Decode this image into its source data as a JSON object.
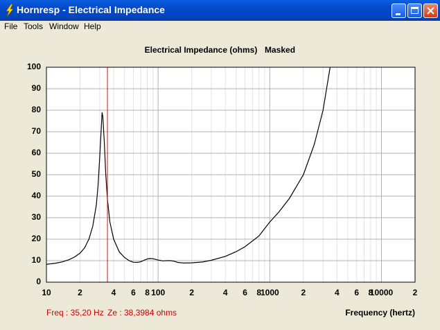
{
  "window": {
    "title": "Hornresp - Electrical Impedance"
  },
  "menu": [
    "File",
    "Tools",
    "Window",
    "Help"
  ],
  "chart_data": {
    "type": "line",
    "title": "Electrical Impedance (ohms)",
    "subtitle": "Masked",
    "x_label": "Frequency (hertz)",
    "xscale": "log",
    "xlim": [
      10,
      20000
    ],
    "xticks": [
      10,
      {
        "value": 20,
        "label": "2"
      },
      {
        "value": 40,
        "label": "4"
      },
      {
        "value": 60,
        "label": "6"
      },
      {
        "value": 80,
        "label": "8"
      },
      100,
      {
        "value": 200,
        "label": "2"
      },
      {
        "value": 400,
        "label": "4"
      },
      {
        "value": 600,
        "label": "6"
      },
      {
        "value": 800,
        "label": "8"
      },
      1000,
      {
        "value": 2000,
        "label": "2"
      },
      {
        "value": 4000,
        "label": "4"
      },
      {
        "value": 6000,
        "label": "6"
      },
      {
        "value": 8000,
        "label": "8"
      },
      10000,
      {
        "value": 20000,
        "label": "2"
      }
    ],
    "xminor": [
      30,
      50,
      70,
      90,
      300,
      500,
      700,
      900,
      3000,
      5000,
      7000,
      9000
    ],
    "ylim": [
      0,
      100
    ],
    "yticks": [
      0,
      10,
      20,
      30,
      40,
      50,
      60,
      70,
      80,
      90,
      100
    ],
    "grid": true,
    "color": "#000000",
    "x": [
      10,
      12,
      14,
      16,
      18,
      20,
      22,
      24,
      26,
      28,
      29,
      30,
      31,
      31.5,
      32,
      33,
      34,
      35.2,
      37,
      40,
      45,
      50,
      55,
      60,
      65,
      70,
      75,
      80,
      85,
      90,
      100,
      110,
      120,
      130,
      140,
      150,
      170,
      200,
      250,
      300,
      400,
      500,
      600,
      800,
      1000,
      1200,
      1500,
      2000,
      2500,
      3000,
      3470
    ],
    "values": [
      8.3,
      8.8,
      9.5,
      10.5,
      11.8,
      13.5,
      16,
      20,
      26,
      36,
      45,
      58,
      72,
      79,
      77,
      65,
      50,
      38.4,
      28,
      20,
      14,
      11.5,
      10,
      9.3,
      9.2,
      9.5,
      10.2,
      10.8,
      11,
      10.9,
      10.3,
      9.9,
      10,
      10,
      9.7,
      9.2,
      8.9,
      9,
      9.4,
      10.2,
      12,
      14.2,
      16.5,
      21.5,
      28,
      32.5,
      39,
      50,
      64,
      80,
      100
    ],
    "cursor": {
      "x": 35.2,
      "color": "#ff0000"
    },
    "status": [
      "Freq : 35,20 Hz",
      "Ze : 38,3984 ohms"
    ]
  }
}
